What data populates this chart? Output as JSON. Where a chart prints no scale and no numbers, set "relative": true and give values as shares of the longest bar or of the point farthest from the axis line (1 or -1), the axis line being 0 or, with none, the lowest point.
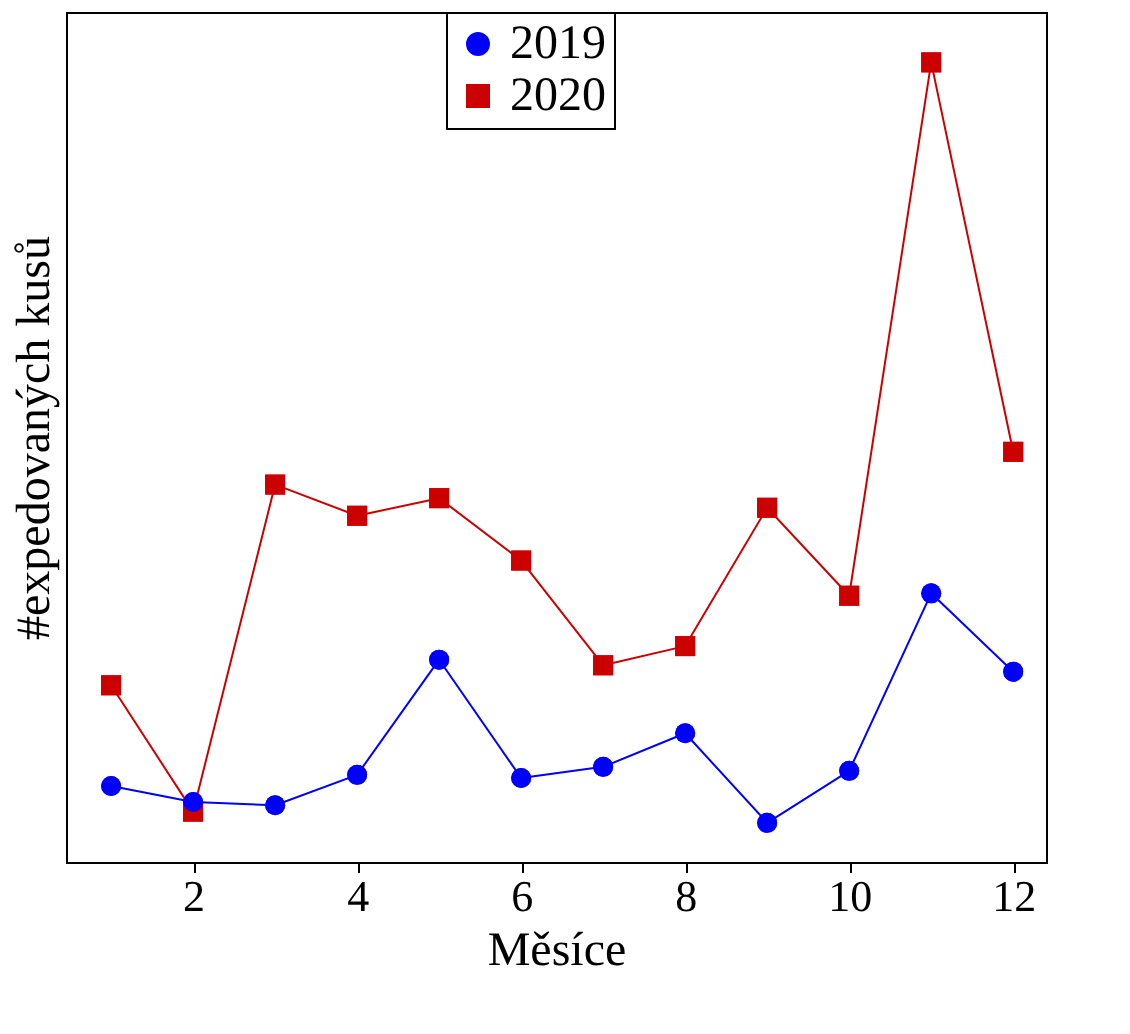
{
  "chart_data": {
    "type": "line",
    "relative": true,
    "xlabel": "Měsíce",
    "ylabel": "#expedovaných kusů",
    "x": [
      1,
      2,
      3,
      4,
      5,
      6,
      7,
      8,
      9,
      10,
      11,
      12
    ],
    "xlim": [
      0.45,
      12.4
    ],
    "xticks": [
      2,
      4,
      6,
      8,
      10,
      12
    ],
    "grid": false,
    "legend": "top",
    "line_style": "solid",
    "series": [
      {
        "name": "2019",
        "color": "#0000ff",
        "marker": "circle",
        "values": [
          0.095,
          0.075,
          0.071,
          0.109,
          0.253,
          0.105,
          0.119,
          0.161,
          0.049,
          0.114,
          0.336,
          0.238
        ]
      },
      {
        "name": "2020",
        "color": "#cc0000",
        "marker": "square",
        "values": [
          0.221,
          0.063,
          0.472,
          0.433,
          0.455,
          0.377,
          0.246,
          0.27,
          0.443,
          0.333,
          1.0,
          0.513
        ]
      }
    ]
  }
}
